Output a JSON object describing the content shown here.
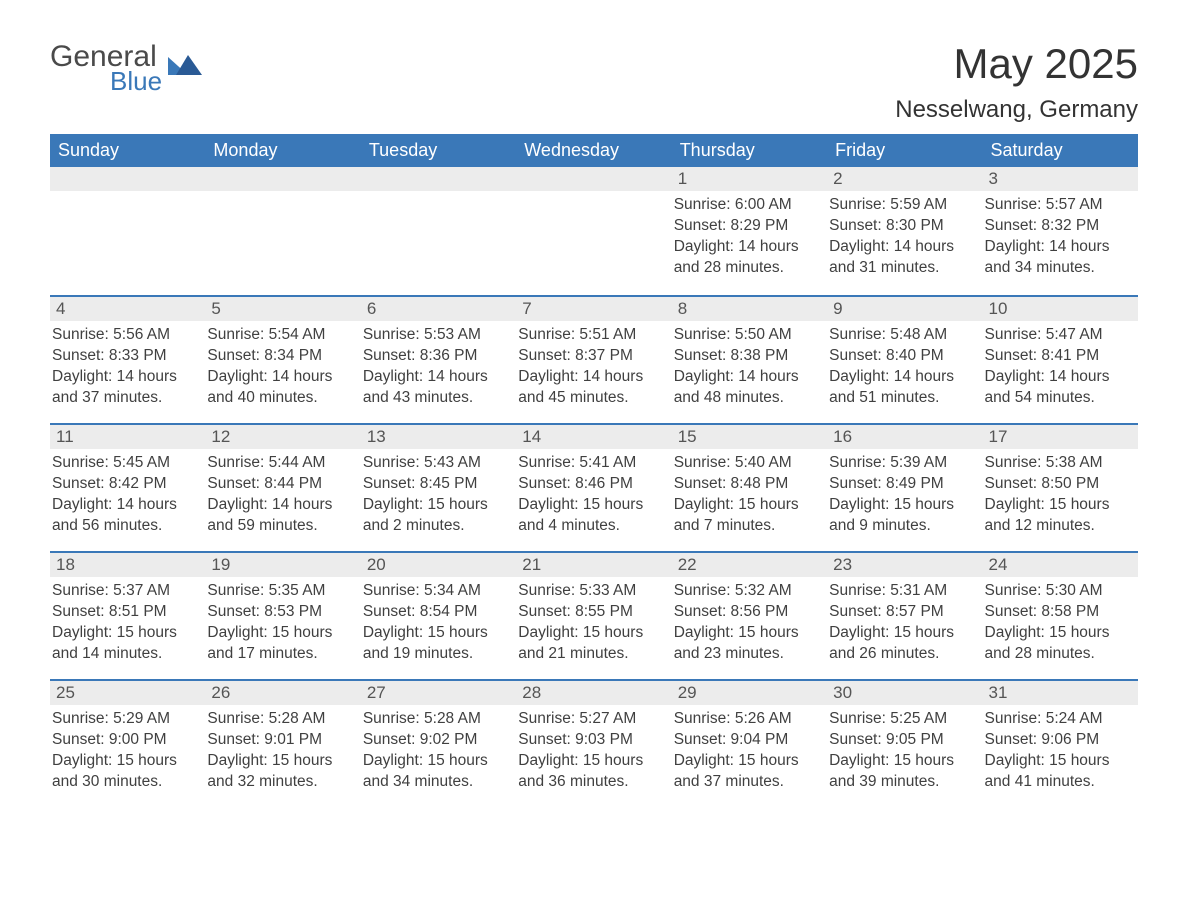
{
  "logo": {
    "general": "General",
    "blue": "Blue"
  },
  "title": "May 2025",
  "location": "Nesselwang, Germany",
  "colors": {
    "header_bg": "#3a78b8",
    "header_text": "#ffffff",
    "daynum_bg": "#ececec",
    "daynum_text": "#555555",
    "body_text": "#404040",
    "page_bg": "#ffffff",
    "border": "#3a78b8"
  },
  "day_names": [
    "Sunday",
    "Monday",
    "Tuesday",
    "Wednesday",
    "Thursday",
    "Friday",
    "Saturday"
  ],
  "weeks": [
    [
      {
        "empty": true
      },
      {
        "empty": true
      },
      {
        "empty": true
      },
      {
        "empty": true
      },
      {
        "num": "1",
        "sunrise": "Sunrise: 6:00 AM",
        "sunset": "Sunset: 8:29 PM",
        "daylight": "Daylight: 14 hours and 28 minutes."
      },
      {
        "num": "2",
        "sunrise": "Sunrise: 5:59 AM",
        "sunset": "Sunset: 8:30 PM",
        "daylight": "Daylight: 14 hours and 31 minutes."
      },
      {
        "num": "3",
        "sunrise": "Sunrise: 5:57 AM",
        "sunset": "Sunset: 8:32 PM",
        "daylight": "Daylight: 14 hours and 34 minutes."
      }
    ],
    [
      {
        "num": "4",
        "sunrise": "Sunrise: 5:56 AM",
        "sunset": "Sunset: 8:33 PM",
        "daylight": "Daylight: 14 hours and 37 minutes."
      },
      {
        "num": "5",
        "sunrise": "Sunrise: 5:54 AM",
        "sunset": "Sunset: 8:34 PM",
        "daylight": "Daylight: 14 hours and 40 minutes."
      },
      {
        "num": "6",
        "sunrise": "Sunrise: 5:53 AM",
        "sunset": "Sunset: 8:36 PM",
        "daylight": "Daylight: 14 hours and 43 minutes."
      },
      {
        "num": "7",
        "sunrise": "Sunrise: 5:51 AM",
        "sunset": "Sunset: 8:37 PM",
        "daylight": "Daylight: 14 hours and 45 minutes."
      },
      {
        "num": "8",
        "sunrise": "Sunrise: 5:50 AM",
        "sunset": "Sunset: 8:38 PM",
        "daylight": "Daylight: 14 hours and 48 minutes."
      },
      {
        "num": "9",
        "sunrise": "Sunrise: 5:48 AM",
        "sunset": "Sunset: 8:40 PM",
        "daylight": "Daylight: 14 hours and 51 minutes."
      },
      {
        "num": "10",
        "sunrise": "Sunrise: 5:47 AM",
        "sunset": "Sunset: 8:41 PM",
        "daylight": "Daylight: 14 hours and 54 minutes."
      }
    ],
    [
      {
        "num": "11",
        "sunrise": "Sunrise: 5:45 AM",
        "sunset": "Sunset: 8:42 PM",
        "daylight": "Daylight: 14 hours and 56 minutes."
      },
      {
        "num": "12",
        "sunrise": "Sunrise: 5:44 AM",
        "sunset": "Sunset: 8:44 PM",
        "daylight": "Daylight: 14 hours and 59 minutes."
      },
      {
        "num": "13",
        "sunrise": "Sunrise: 5:43 AM",
        "sunset": "Sunset: 8:45 PM",
        "daylight": "Daylight: 15 hours and 2 minutes."
      },
      {
        "num": "14",
        "sunrise": "Sunrise: 5:41 AM",
        "sunset": "Sunset: 8:46 PM",
        "daylight": "Daylight: 15 hours and 4 minutes."
      },
      {
        "num": "15",
        "sunrise": "Sunrise: 5:40 AM",
        "sunset": "Sunset: 8:48 PM",
        "daylight": "Daylight: 15 hours and 7 minutes."
      },
      {
        "num": "16",
        "sunrise": "Sunrise: 5:39 AM",
        "sunset": "Sunset: 8:49 PM",
        "daylight": "Daylight: 15 hours and 9 minutes."
      },
      {
        "num": "17",
        "sunrise": "Sunrise: 5:38 AM",
        "sunset": "Sunset: 8:50 PM",
        "daylight": "Daylight: 15 hours and 12 minutes."
      }
    ],
    [
      {
        "num": "18",
        "sunrise": "Sunrise: 5:37 AM",
        "sunset": "Sunset: 8:51 PM",
        "daylight": "Daylight: 15 hours and 14 minutes."
      },
      {
        "num": "19",
        "sunrise": "Sunrise: 5:35 AM",
        "sunset": "Sunset: 8:53 PM",
        "daylight": "Daylight: 15 hours and 17 minutes."
      },
      {
        "num": "20",
        "sunrise": "Sunrise: 5:34 AM",
        "sunset": "Sunset: 8:54 PM",
        "daylight": "Daylight: 15 hours and 19 minutes."
      },
      {
        "num": "21",
        "sunrise": "Sunrise: 5:33 AM",
        "sunset": "Sunset: 8:55 PM",
        "daylight": "Daylight: 15 hours and 21 minutes."
      },
      {
        "num": "22",
        "sunrise": "Sunrise: 5:32 AM",
        "sunset": "Sunset: 8:56 PM",
        "daylight": "Daylight: 15 hours and 23 minutes."
      },
      {
        "num": "23",
        "sunrise": "Sunrise: 5:31 AM",
        "sunset": "Sunset: 8:57 PM",
        "daylight": "Daylight: 15 hours and 26 minutes."
      },
      {
        "num": "24",
        "sunrise": "Sunrise: 5:30 AM",
        "sunset": "Sunset: 8:58 PM",
        "daylight": "Daylight: 15 hours and 28 minutes."
      }
    ],
    [
      {
        "num": "25",
        "sunrise": "Sunrise: 5:29 AM",
        "sunset": "Sunset: 9:00 PM",
        "daylight": "Daylight: 15 hours and 30 minutes."
      },
      {
        "num": "26",
        "sunrise": "Sunrise: 5:28 AM",
        "sunset": "Sunset: 9:01 PM",
        "daylight": "Daylight: 15 hours and 32 minutes."
      },
      {
        "num": "27",
        "sunrise": "Sunrise: 5:28 AM",
        "sunset": "Sunset: 9:02 PM",
        "daylight": "Daylight: 15 hours and 34 minutes."
      },
      {
        "num": "28",
        "sunrise": "Sunrise: 5:27 AM",
        "sunset": "Sunset: 9:03 PM",
        "daylight": "Daylight: 15 hours and 36 minutes."
      },
      {
        "num": "29",
        "sunrise": "Sunrise: 5:26 AM",
        "sunset": "Sunset: 9:04 PM",
        "daylight": "Daylight: 15 hours and 37 minutes."
      },
      {
        "num": "30",
        "sunrise": "Sunrise: 5:25 AM",
        "sunset": "Sunset: 9:05 PM",
        "daylight": "Daylight: 15 hours and 39 minutes."
      },
      {
        "num": "31",
        "sunrise": "Sunrise: 5:24 AM",
        "sunset": "Sunset: 9:06 PM",
        "daylight": "Daylight: 15 hours and 41 minutes."
      }
    ]
  ]
}
